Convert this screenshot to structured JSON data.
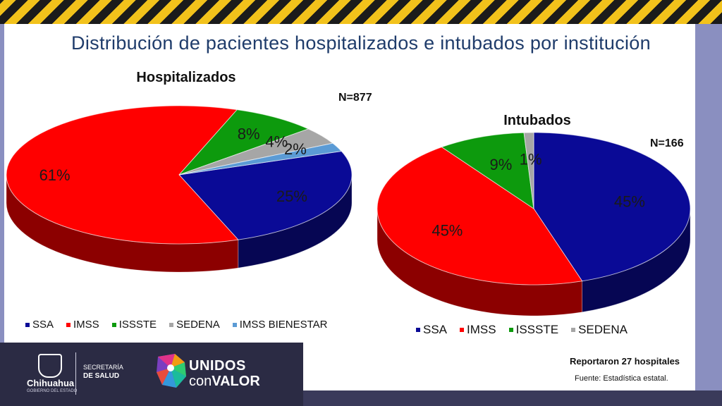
{
  "title": "Distribución de pacientes hospitalizados e intubados por institución",
  "colors": {
    "SSA": "#0a0a96",
    "IMSS": "#ff0000",
    "ISSSTE": "#0d9a0d",
    "SEDENA": "#a6a6a6",
    "IMSS BIENESTAR": "#5b9bd5"
  },
  "chart_data": [
    {
      "type": "pie",
      "title": "Hospitalizados",
      "n_label": "N=877",
      "categories": [
        "SSA",
        "IMSS",
        "ISSSTE",
        "SEDENA",
        "IMSS BIENESTAR"
      ],
      "values": [
        25,
        61,
        8,
        4,
        2
      ],
      "labels": [
        "25%",
        "61%",
        "8%",
        "4%",
        "2%"
      ],
      "legend": [
        "SSA",
        "IMSS",
        "ISSSTE",
        "SEDENA",
        "IMSS BIENESTAR"
      ],
      "legend_position": "bottom"
    },
    {
      "type": "pie",
      "title": "Intubados",
      "n_label": "N=166",
      "categories": [
        "SSA",
        "IMSS",
        "ISSSTE",
        "SEDENA"
      ],
      "values": [
        45,
        45,
        9,
        1
      ],
      "labels": [
        "45%",
        "45%",
        "9%",
        "1%"
      ],
      "legend": [
        "SSA",
        "IMSS",
        "ISSSTE",
        "SEDENA"
      ],
      "legend_position": "bottom"
    }
  ],
  "footer": {
    "reportaron": "Reportaron 27 hospitales",
    "fuente": "Fuente: Estadística estatal.",
    "chihuahua": "Chihuahua",
    "chihuahua_sub": "GOBIERNO DEL ESTADO",
    "secretaria_1": "SECRETARÍA",
    "secretaria_2": "DE SALUD",
    "unidos_1": "UNIDOS",
    "unidos_2a": "con",
    "unidos_2b": "VALOR"
  }
}
